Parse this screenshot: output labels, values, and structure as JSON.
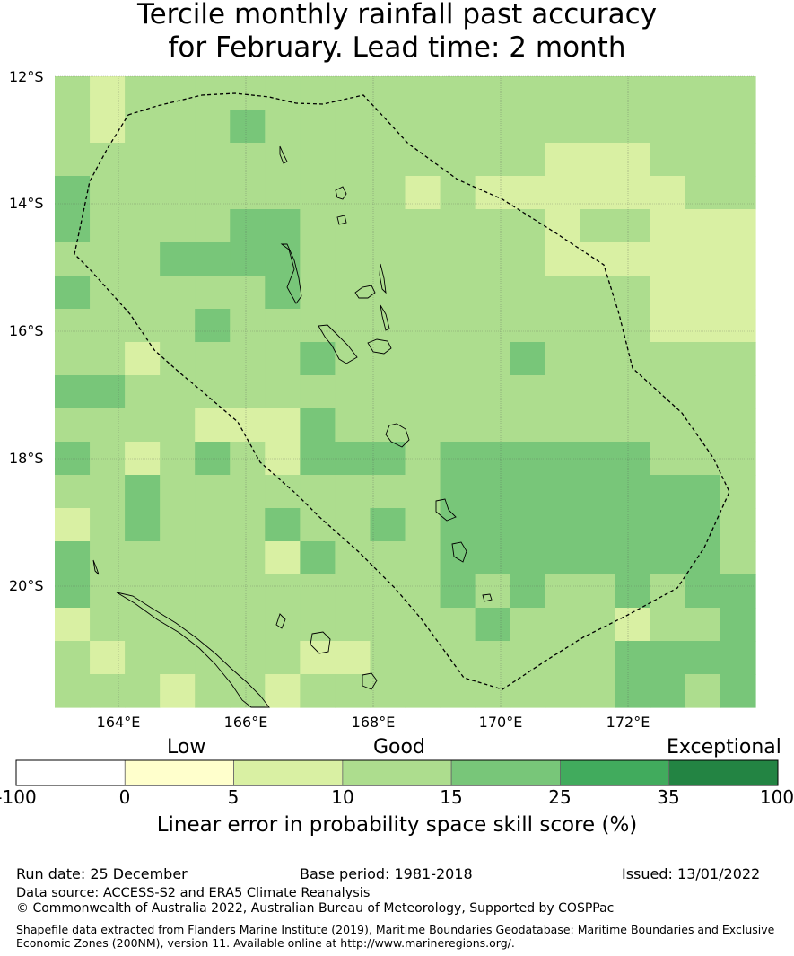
{
  "title": {
    "line1": "Tercile monthly rainfall past accuracy",
    "line2": "for February. Lead time: 2 month"
  },
  "map": {
    "lat_labels": [
      "12°S",
      "14°S",
      "16°S",
      "18°S",
      "20°S"
    ],
    "lon_labels": [
      "164°E",
      "166°E",
      "168°E",
      "170°E",
      "172°E"
    ],
    "grid_values": [
      [
        10,
        5,
        10,
        10,
        10,
        10,
        10,
        10,
        10,
        10,
        10,
        10,
        10,
        10,
        10,
        10,
        10,
        10,
        10,
        10
      ],
      [
        10,
        5,
        10,
        10,
        10,
        15,
        10,
        10,
        10,
        10,
        10,
        10,
        10,
        10,
        10,
        10,
        10,
        10,
        10,
        10
      ],
      [
        10,
        10,
        10,
        10,
        10,
        10,
        10,
        10,
        10,
        10,
        10,
        10,
        10,
        10,
        5,
        5,
        5,
        10,
        10,
        10
      ],
      [
        15,
        10,
        10,
        10,
        10,
        10,
        10,
        10,
        10,
        10,
        5,
        10,
        5,
        5,
        5,
        5,
        5,
        5,
        10,
        10
      ],
      [
        15,
        10,
        10,
        10,
        10,
        15,
        15,
        10,
        10,
        10,
        10,
        10,
        10,
        10,
        5,
        10,
        10,
        5,
        5,
        5
      ],
      [
        10,
        10,
        10,
        15,
        15,
        15,
        15,
        10,
        10,
        10,
        10,
        10,
        10,
        10,
        5,
        5,
        5,
        5,
        5,
        5
      ],
      [
        15,
        10,
        10,
        10,
        10,
        10,
        15,
        10,
        10,
        10,
        10,
        10,
        10,
        10,
        10,
        10,
        10,
        5,
        5,
        5
      ],
      [
        10,
        10,
        10,
        10,
        15,
        10,
        10,
        10,
        10,
        10,
        10,
        10,
        10,
        10,
        10,
        10,
        10,
        5,
        5,
        5
      ],
      [
        10,
        10,
        5,
        10,
        10,
        10,
        10,
        15,
        10,
        10,
        10,
        10,
        10,
        15,
        10,
        10,
        10,
        10,
        10,
        10
      ],
      [
        15,
        15,
        10,
        10,
        10,
        10,
        10,
        10,
        10,
        10,
        10,
        10,
        10,
        10,
        10,
        10,
        10,
        10,
        10,
        10
      ],
      [
        10,
        10,
        10,
        10,
        5,
        5,
        5,
        15,
        10,
        10,
        10,
        10,
        10,
        10,
        10,
        10,
        10,
        10,
        10,
        10
      ],
      [
        15,
        10,
        5,
        10,
        15,
        10,
        5,
        15,
        15,
        15,
        10,
        15,
        15,
        15,
        15,
        15,
        15,
        10,
        10,
        10
      ],
      [
        10,
        10,
        15,
        10,
        10,
        10,
        10,
        10,
        10,
        10,
        10,
        15,
        15,
        15,
        15,
        15,
        15,
        15,
        15,
        10
      ],
      [
        5,
        10,
        15,
        10,
        10,
        10,
        15,
        10,
        10,
        15,
        10,
        15,
        15,
        15,
        15,
        15,
        15,
        15,
        15,
        10
      ],
      [
        15,
        10,
        10,
        10,
        10,
        10,
        5,
        15,
        10,
        10,
        10,
        15,
        15,
        15,
        15,
        15,
        15,
        15,
        15,
        10
      ],
      [
        15,
        10,
        10,
        10,
        10,
        10,
        10,
        10,
        10,
        10,
        10,
        15,
        10,
        15,
        10,
        10,
        15,
        10,
        15,
        15
      ],
      [
        5,
        10,
        10,
        10,
        10,
        10,
        10,
        10,
        10,
        10,
        10,
        10,
        15,
        10,
        10,
        10,
        5,
        10,
        10,
        15
      ],
      [
        10,
        5,
        10,
        10,
        10,
        10,
        10,
        5,
        5,
        10,
        10,
        10,
        10,
        10,
        10,
        10,
        15,
        15,
        15,
        15
      ],
      [
        10,
        10,
        10,
        5,
        10,
        10,
        5,
        10,
        10,
        10,
        10,
        10,
        10,
        10,
        10,
        10,
        15,
        15,
        10,
        15
      ]
    ]
  },
  "colorbar": {
    "categories": [
      "Low",
      "Good",
      "Exceptional"
    ],
    "ticks": [
      "-100",
      "0",
      "5",
      "10",
      "15",
      "25",
      "35",
      "100"
    ],
    "colors": [
      "#ffffff",
      "#ffffcc",
      "#d9f0a3",
      "#addd8e",
      "#78c679",
      "#41ab5d",
      "#238443"
    ],
    "xlabel": "Linear error in probability space skill score (%)"
  },
  "info": {
    "run_date": "Run date: 25 December",
    "base_period": "Base period: 1981-2018",
    "issued": "Issued: 13/01/2022",
    "data_source": "Data source: ACCESS-S2 and ERA5 Climate Reanalysis",
    "copyright": "© Commonwealth of Australia 2022, Australian Bureau of Meteorology, Supported by COSPPac",
    "shapefile_line1": "Shapefile data extracted from Flanders Marine Institute (2019), Maritime Boundaries Geodatabase: Maritime Boundaries and Exclusive",
    "shapefile_line2": "Economic Zones (200NM), version 11. Available online at http://www.marineregions.org/."
  }
}
